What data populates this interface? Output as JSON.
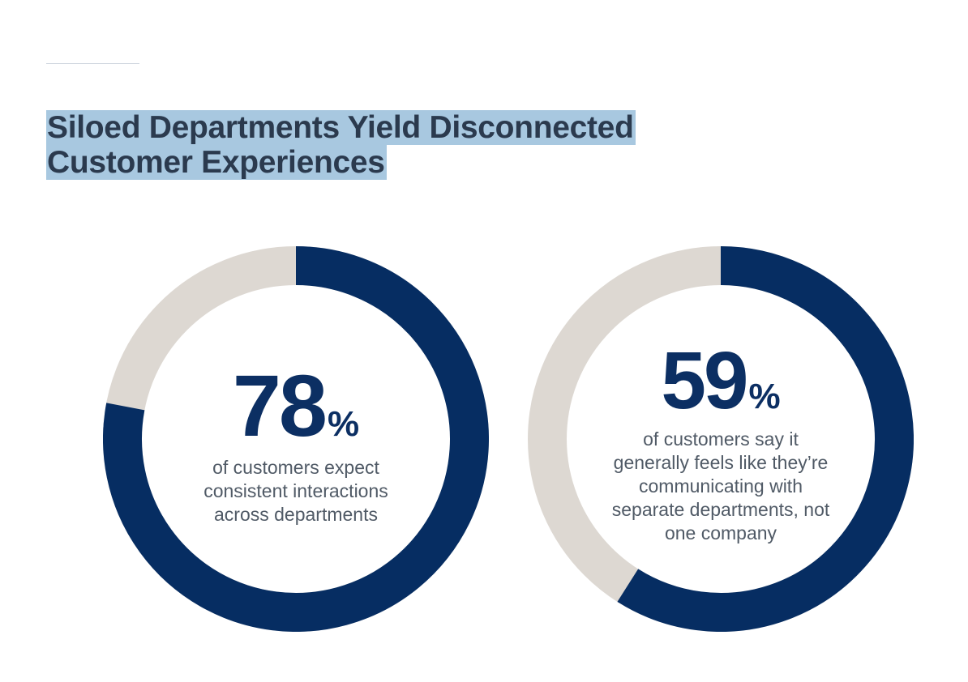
{
  "title_line1": "Siloed Departments Yield Disconnected",
  "title_line2": "Customer Experiences",
  "colors": {
    "filled": "#062d62",
    "remainder": "#ddd8d2",
    "highlight": "#a8c8e0"
  },
  "chart_data": [
    {
      "type": "pie",
      "value_percent": 78,
      "value_label": "78",
      "percent_sign": "%",
      "description": "of customers expect consistent interactions across departments"
    },
    {
      "type": "pie",
      "value_percent": 59,
      "value_label": "59",
      "percent_sign": "%",
      "description": "of customers say it generally feels like they’re communicating with separate departments, not one company"
    }
  ]
}
